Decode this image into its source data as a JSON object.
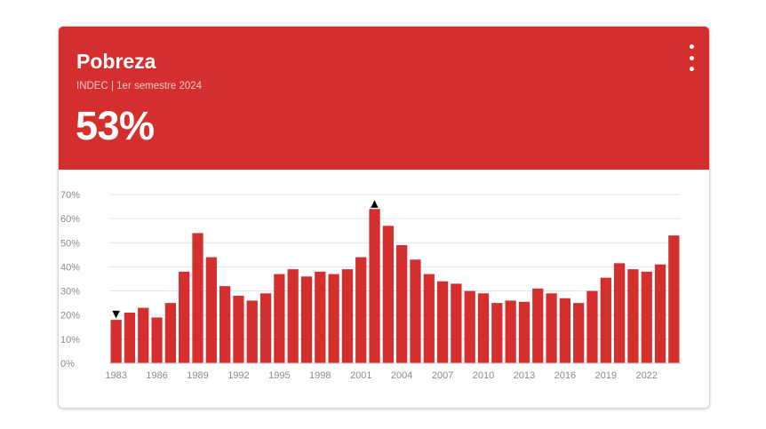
{
  "card": {
    "title": "Pobreza",
    "subtitle": "INDEC | 1er semestre 2024",
    "value": "53%"
  },
  "colors": {
    "accent": "#d32f2f",
    "bar": "#d32f2f",
    "grid": "#e3e3e3",
    "marker": "#000000"
  },
  "chart_data": {
    "type": "bar",
    "title": "",
    "xlabel": "",
    "ylabel": "",
    "ylim": [
      0,
      70
    ],
    "y_ticks": [
      0,
      10,
      20,
      30,
      40,
      50,
      60,
      70
    ],
    "y_tick_labels": [
      "0%",
      "10%",
      "20%",
      "30%",
      "40%",
      "50%",
      "60%",
      "70%"
    ],
    "x_tick_labels": [
      "1983",
      "1986",
      "1989",
      "1992",
      "1995",
      "1998",
      "2001",
      "2004",
      "2007",
      "2010",
      "2013",
      "2016",
      "2019",
      "2022"
    ],
    "categories": [
      "1983",
      "1984",
      "1985",
      "1986",
      "1987",
      "1988",
      "1989",
      "1990",
      "1991",
      "1992",
      "1993",
      "1994",
      "1995",
      "1996",
      "1997",
      "1998",
      "1999",
      "2000",
      "2001",
      "2002",
      "2003",
      "2004",
      "2005",
      "2006",
      "2007",
      "2008",
      "2009",
      "2010",
      "2011",
      "2012",
      "2013",
      "2014",
      "2015",
      "2016",
      "2017",
      "2018",
      "2019",
      "2020",
      "2021",
      "2022",
      "2023",
      "2024"
    ],
    "values": [
      18,
      21,
      23,
      19,
      25,
      38,
      54,
      44,
      32,
      28,
      26,
      29,
      37,
      39,
      36,
      38,
      37,
      39,
      44,
      64,
      57,
      49,
      43,
      37,
      34,
      33,
      30,
      29,
      25,
      26,
      25.5,
      31,
      29,
      27,
      25,
      30,
      35.5,
      41.5,
      39,
      38,
      41,
      53
    ],
    "grid": true,
    "legend": "none",
    "markers": [
      {
        "category": "1983",
        "symbol": "▼",
        "meaning": "min"
      },
      {
        "category": "2002",
        "symbol": "▲",
        "meaning": "max"
      }
    ]
  }
}
